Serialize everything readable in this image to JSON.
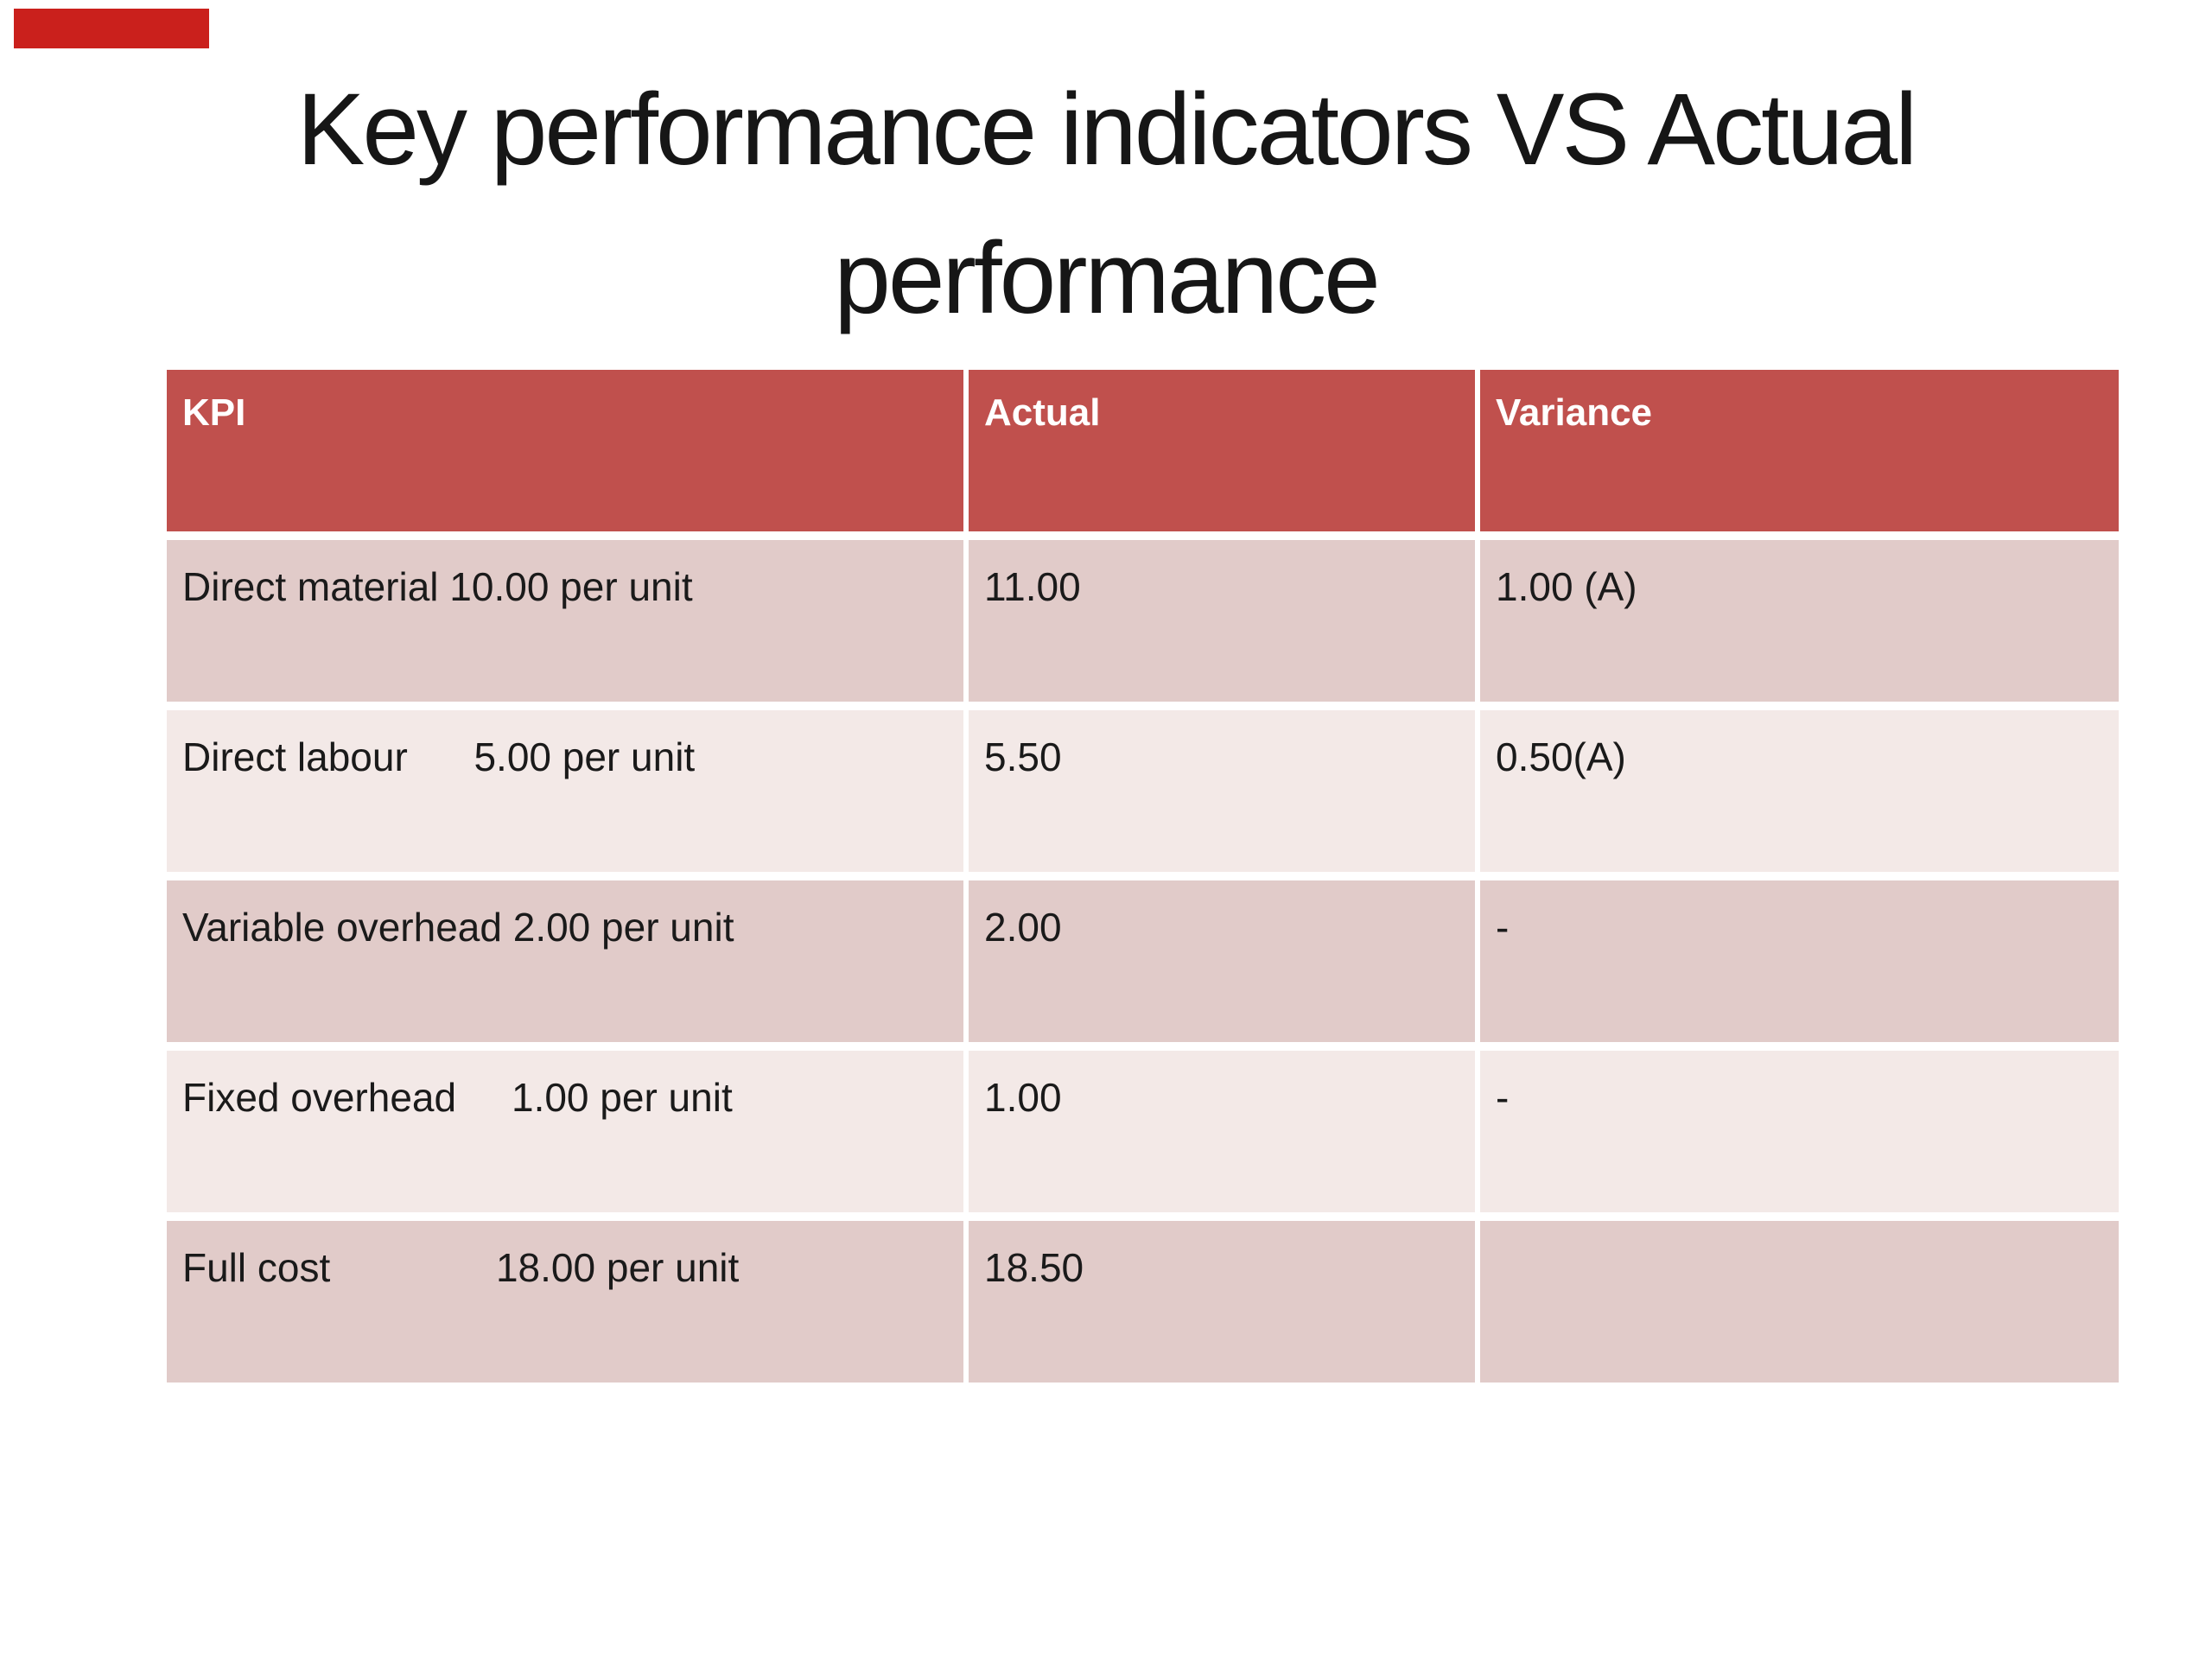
{
  "slide": {
    "background_color": "#ffffff",
    "progress_bar_color": "#ca201c"
  },
  "title": {
    "line1": "Key performance indicators VS Actual",
    "line2": "performance"
  },
  "table": {
    "colors": {
      "header_bg": "#c0504d",
      "header_text": "#ffffff",
      "band_dark": "#e1cbc9",
      "band_light": "#f3e9e7",
      "body_text": "#1a1a1a"
    },
    "columns": [
      "KPI",
      "Actual",
      "Variance"
    ],
    "rows": [
      {
        "kpi": "Direct material 10.00 per unit",
        "actual": "11.00",
        "variance": "1.00 (A)"
      },
      {
        "kpi": "Direct labour      5.00 per unit",
        "actual": "5.50",
        "variance": "0.50(A)"
      },
      {
        "kpi": "Variable overhead 2.00 per unit",
        "actual": "2.00",
        "variance": "-"
      },
      {
        "kpi": "Fixed overhead     1.00 per unit",
        "actual": "1.00",
        "variance": "-"
      },
      {
        "kpi": "Full cost               18.00 per unit",
        "actual": "18.50",
        "variance": ""
      }
    ]
  }
}
